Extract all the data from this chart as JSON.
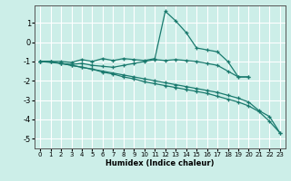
{
  "xlabel": "Humidex (Indice chaleur)",
  "bg_color": "#cceee8",
  "grid_color": "#ffffff",
  "line_color": "#1a7a6e",
  "xlim": [
    -0.5,
    23.5
  ],
  "ylim": [
    -5.5,
    1.9
  ],
  "xticks": [
    0,
    1,
    2,
    3,
    4,
    5,
    6,
    7,
    8,
    9,
    10,
    11,
    12,
    13,
    14,
    15,
    16,
    17,
    18,
    19,
    20,
    21,
    22,
    23
  ],
  "yticks": [
    -5,
    -4,
    -3,
    -2,
    -1,
    0,
    1
  ],
  "lines": [
    {
      "x": [
        0,
        1,
        2,
        3,
        4,
        5,
        6,
        7,
        8,
        9,
        10,
        11,
        12,
        13,
        14,
        15,
        16,
        17,
        18,
        19,
        20
      ],
      "y": [
        -1.0,
        -1.0,
        -1.0,
        -1.05,
        -0.9,
        -1.0,
        -0.85,
        -0.95,
        -0.85,
        -0.9,
        -0.95,
        -0.85,
        1.6,
        1.1,
        0.5,
        -0.3,
        -0.4,
        -0.5,
        -1.0,
        -1.8,
        -1.8
      ]
    },
    {
      "x": [
        0,
        1,
        2,
        3,
        4,
        5,
        6,
        7,
        8,
        9,
        10,
        11,
        12,
        13,
        14,
        15,
        16,
        17,
        18,
        19,
        20
      ],
      "y": [
        -1.0,
        -1.0,
        -1.1,
        -1.15,
        -1.1,
        -1.2,
        -1.25,
        -1.3,
        -1.2,
        -1.1,
        -1.0,
        -0.9,
        -0.95,
        -0.9,
        -0.95,
        -1.0,
        -1.1,
        -1.2,
        -1.5,
        -1.8,
        -1.8
      ]
    },
    {
      "x": [
        0,
        1,
        2,
        3,
        4,
        5,
        6,
        7,
        8,
        9,
        10,
        11,
        12,
        13,
        14,
        15,
        16,
        17,
        18,
        19,
        20,
        21,
        22,
        23
      ],
      "y": [
        -1.0,
        -1.0,
        -1.1,
        -1.2,
        -1.3,
        -1.4,
        -1.55,
        -1.65,
        -1.8,
        -1.9,
        -2.05,
        -2.15,
        -2.25,
        -2.35,
        -2.45,
        -2.55,
        -2.65,
        -2.8,
        -2.95,
        -3.1,
        -3.3,
        -3.6,
        -4.1,
        -4.7
      ]
    },
    {
      "x": [
        0,
        2,
        3,
        4,
        5,
        6,
        7,
        8,
        9,
        10,
        11,
        12,
        13,
        14,
        15,
        16,
        17,
        18,
        19,
        20,
        21,
        22,
        23
      ],
      "y": [
        -1.0,
        -1.1,
        -1.2,
        -1.3,
        -1.4,
        -1.5,
        -1.6,
        -1.7,
        -1.8,
        -1.9,
        -2.0,
        -2.1,
        -2.2,
        -2.3,
        -2.4,
        -2.5,
        -2.6,
        -2.75,
        -2.9,
        -3.1,
        -3.55,
        -3.85,
        -4.7
      ]
    }
  ]
}
